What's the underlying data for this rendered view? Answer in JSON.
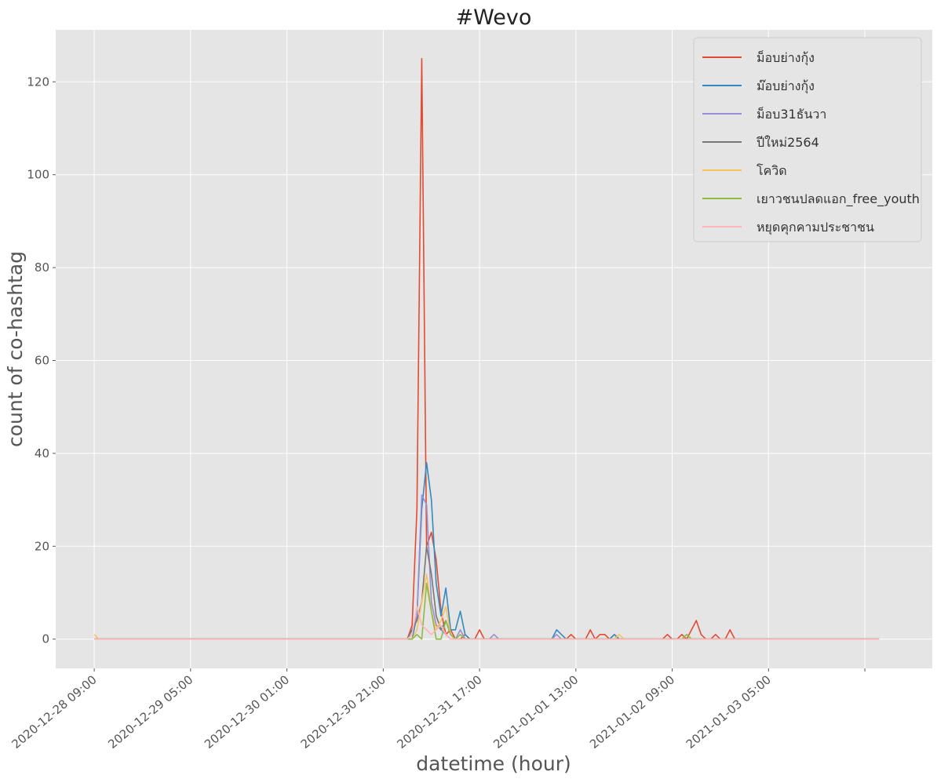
{
  "chart_data": {
    "type": "line",
    "title": "#Wevo",
    "xlabel": "datetime (hour)",
    "ylabel": "count of co-hashtag",
    "x_ticks": [
      "2020-12-28 09:00",
      "2020-12-29 05:00",
      "2020-12-30 01:00",
      "2020-12-30 21:00",
      "2020-12-31 17:00",
      "2021-01-01 13:00",
      "2021-01-02 09:00",
      "2021-01-03 05:00"
    ],
    "y_ticks": [
      0,
      20,
      40,
      60,
      80,
      100,
      120
    ],
    "x_range_hours": [
      -8,
      166
    ],
    "ylim": [
      -6.3,
      131.2
    ],
    "x_range": [
      "2020-12-28 01:00",
      "2021-01-04 15:00"
    ],
    "x_start": "2020-12-28 09:00",
    "x_end": "2021-01-04 04:00",
    "grid": true,
    "legend_position": "top-right",
    "series": [
      {
        "name": "ม็อบย่างกุ้ง",
        "color": "#E24A33",
        "points": [
          [
            "2020-12-31 02:00",
            0
          ],
          [
            "2020-12-31 03:00",
            3
          ],
          [
            "2020-12-31 04:00",
            28
          ],
          [
            "2020-12-31 05:00",
            125
          ],
          [
            "2020-12-31 06:00",
            20
          ],
          [
            "2020-12-31 07:00",
            23
          ],
          [
            "2020-12-31 08:00",
            17
          ],
          [
            "2020-12-31 09:00",
            6
          ],
          [
            "2020-12-31 10:00",
            1
          ],
          [
            "2020-12-31 11:00",
            2
          ],
          [
            "2020-12-31 12:00",
            0
          ],
          [
            "2020-12-31 14:00",
            1
          ],
          [
            "2020-12-31 15:00",
            0
          ],
          [
            "2020-12-31 16:00",
            0
          ],
          [
            "2020-12-31 17:00",
            2
          ],
          [
            "2020-12-31 18:00",
            0
          ],
          [
            "2021-01-01 11:00",
            0
          ],
          [
            "2021-01-01 12:00",
            1
          ],
          [
            "2021-01-01 13:00",
            0
          ],
          [
            "2021-01-01 15:00",
            0
          ],
          [
            "2021-01-01 16:00",
            2
          ],
          [
            "2021-01-01 17:00",
            0
          ],
          [
            "2021-01-01 18:00",
            1
          ],
          [
            "2021-01-01 19:00",
            1
          ],
          [
            "2021-01-01 20:00",
            0
          ],
          [
            "2021-01-01 21:00",
            1
          ],
          [
            "2021-01-01 22:00",
            0
          ],
          [
            "2021-01-02 07:00",
            0
          ],
          [
            "2021-01-02 08:00",
            1
          ],
          [
            "2021-01-02 09:00",
            0
          ],
          [
            "2021-01-02 10:00",
            0
          ],
          [
            "2021-01-02 11:00",
            1
          ],
          [
            "2021-01-02 12:00",
            0
          ],
          [
            "2021-01-02 13:00",
            2
          ],
          [
            "2021-01-02 14:00",
            4
          ],
          [
            "2021-01-02 15:00",
            1
          ],
          [
            "2021-01-02 16:00",
            0
          ],
          [
            "2021-01-02 17:00",
            0
          ],
          [
            "2021-01-02 18:00",
            1
          ],
          [
            "2021-01-02 19:00",
            0
          ],
          [
            "2021-01-02 20:00",
            0
          ],
          [
            "2021-01-02 21:00",
            2
          ],
          [
            "2021-01-02 22:00",
            0
          ]
        ]
      },
      {
        "name": "ม๊อบย่างกุ้ง",
        "color": "#348ABD",
        "points": [
          [
            "2020-12-31 03:00",
            0
          ],
          [
            "2020-12-31 04:00",
            5
          ],
          [
            "2020-12-31 05:00",
            28
          ],
          [
            "2020-12-31 06:00",
            38
          ],
          [
            "2020-12-31 07:00",
            30
          ],
          [
            "2020-12-31 08:00",
            12
          ],
          [
            "2020-12-31 09:00",
            5
          ],
          [
            "2020-12-31 10:00",
            11
          ],
          [
            "2020-12-31 11:00",
            2
          ],
          [
            "2020-12-31 12:00",
            2
          ],
          [
            "2020-12-31 13:00",
            6
          ],
          [
            "2020-12-31 14:00",
            1
          ],
          [
            "2020-12-31 15:00",
            0
          ],
          [
            "2021-01-01 08:00",
            0
          ],
          [
            "2021-01-01 09:00",
            2
          ],
          [
            "2021-01-01 10:00",
            1
          ],
          [
            "2021-01-01 11:00",
            0
          ],
          [
            "2021-01-01 20:00",
            0
          ],
          [
            "2021-01-01 21:00",
            1
          ],
          [
            "2021-01-01 22:00",
            0
          ]
        ]
      },
      {
        "name": "ม็อบ31ธันวา",
        "color": "#988ED5",
        "points": [
          [
            "2020-12-31 02:00",
            0
          ],
          [
            "2020-12-31 03:00",
            2
          ],
          [
            "2020-12-31 04:00",
            5
          ],
          [
            "2020-12-31 05:00",
            31
          ],
          [
            "2020-12-31 06:00",
            29
          ],
          [
            "2020-12-31 07:00",
            8
          ],
          [
            "2020-12-31 08:00",
            3
          ],
          [
            "2020-12-31 09:00",
            2
          ],
          [
            "2020-12-31 10:00",
            1
          ],
          [
            "2020-12-31 11:00",
            0
          ],
          [
            "2020-12-31 13:00",
            2
          ],
          [
            "2020-12-31 14:00",
            0
          ],
          [
            "2020-12-31 19:00",
            0
          ],
          [
            "2020-12-31 20:00",
            1
          ],
          [
            "2020-12-31 21:00",
            0
          ],
          [
            "2021-01-01 08:00",
            0
          ],
          [
            "2021-01-01 09:00",
            1
          ],
          [
            "2021-01-01 10:00",
            0
          ]
        ]
      },
      {
        "name": "ปีใหม่2564",
        "color": "#777777",
        "points": [
          [
            "2020-12-31 02:00",
            0
          ],
          [
            "2020-12-31 03:00",
            2
          ],
          [
            "2020-12-31 04:00",
            4
          ],
          [
            "2020-12-31 05:00",
            8
          ],
          [
            "2020-12-31 06:00",
            20
          ],
          [
            "2020-12-31 07:00",
            14
          ],
          [
            "2020-12-31 08:00",
            5
          ],
          [
            "2020-12-31 09:00",
            2
          ],
          [
            "2020-12-31 10:00",
            4
          ],
          [
            "2020-12-31 11:00",
            1
          ],
          [
            "2020-12-31 12:00",
            0
          ]
        ]
      },
      {
        "name": "โควิด",
        "color": "#FBC15E",
        "points": [
          [
            "2020-12-28 09:00",
            1
          ],
          [
            "2020-12-28 10:00",
            0
          ],
          [
            "2020-12-31 03:00",
            0
          ],
          [
            "2020-12-31 04:00",
            2
          ],
          [
            "2020-12-31 05:00",
            8
          ],
          [
            "2020-12-31 06:00",
            14
          ],
          [
            "2020-12-31 07:00",
            6
          ],
          [
            "2020-12-31 08:00",
            2
          ],
          [
            "2020-12-31 09:00",
            4
          ],
          [
            "2020-12-31 10:00",
            7
          ],
          [
            "2020-12-31 11:00",
            1
          ],
          [
            "2020-12-31 12:00",
            0
          ],
          [
            "2021-01-01 21:00",
            0
          ],
          [
            "2021-01-01 22:00",
            1
          ],
          [
            "2021-01-01 23:00",
            0
          ],
          [
            "2021-01-02 11:00",
            0
          ],
          [
            "2021-01-02 12:00",
            1
          ],
          [
            "2021-01-02 13:00",
            0
          ]
        ]
      },
      {
        "name": "เยาวชนปลดแอก_free_youth",
        "color": "#8EBA42",
        "points": [
          [
            "2020-12-31 03:00",
            0
          ],
          [
            "2020-12-31 04:00",
            1
          ],
          [
            "2020-12-31 05:00",
            0
          ],
          [
            "2020-12-31 06:00",
            12
          ],
          [
            "2020-12-31 07:00",
            6
          ],
          [
            "2020-12-31 08:00",
            0
          ],
          [
            "2020-12-31 09:00",
            0
          ],
          [
            "2020-12-31 10:00",
            4
          ],
          [
            "2020-12-31 11:00",
            1
          ],
          [
            "2020-12-31 12:00",
            0
          ],
          [
            "2020-12-31 13:00",
            1
          ],
          [
            "2020-12-31 14:00",
            0
          ],
          [
            "2021-01-01 21:00",
            0
          ],
          [
            "2021-01-01 22:00",
            0
          ],
          [
            "2021-01-02 11:00",
            0
          ],
          [
            "2021-01-02 12:00",
            1
          ],
          [
            "2021-01-02 13:00",
            0
          ]
        ]
      },
      {
        "name": "หยุดคุกคามประชาชน",
        "color": "#FFB5B8",
        "points": [
          [
            "2020-12-31 02:00",
            0
          ],
          [
            "2020-12-31 03:00",
            1
          ],
          [
            "2020-12-31 04:00",
            7
          ],
          [
            "2020-12-31 05:00",
            3
          ],
          [
            "2020-12-31 06:00",
            2
          ],
          [
            "2020-12-31 07:00",
            1
          ],
          [
            "2020-12-31 08:00",
            2
          ],
          [
            "2020-12-31 09:00",
            3
          ],
          [
            "2020-12-31 10:00",
            1
          ],
          [
            "2020-12-31 11:00",
            0
          ]
        ]
      }
    ]
  }
}
